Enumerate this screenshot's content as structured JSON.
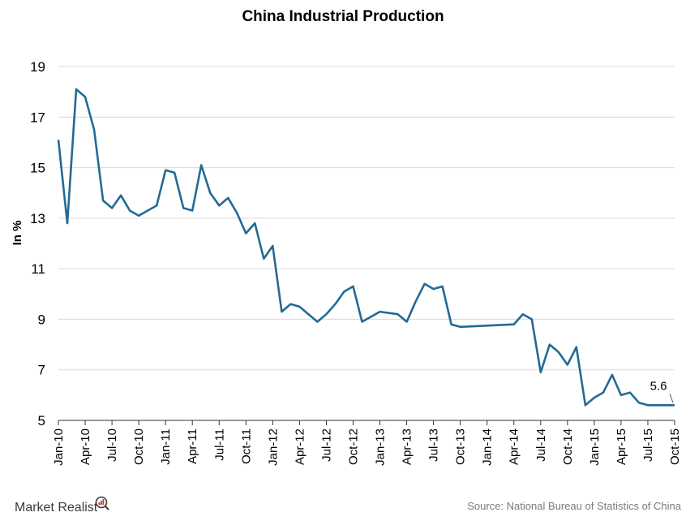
{
  "chart_data": {
    "type": "line",
    "title": "China Industrial Production",
    "ylabel": "In %",
    "xlabel": "",
    "ylim": [
      5,
      19
    ],
    "yticks": [
      5,
      7,
      9,
      11,
      13,
      15,
      17,
      19
    ],
    "grid": "horizontal",
    "line_color": "#236a96",
    "x_tick_labels": [
      "Jan-10",
      "Apr-10",
      "Jul-10",
      "Oct-10",
      "Jan-11",
      "Apr-11",
      "Jul-11",
      "Oct-11",
      "Jan-12",
      "Apr-12",
      "Jul-12",
      "Oct-12",
      "Jan-13",
      "Apr-13",
      "Jul-13",
      "Oct-13",
      "Jan-14",
      "Apr-14",
      "Jul-14",
      "Oct-14",
      "Jan-15",
      "Apr-15",
      "Jul-15",
      "Oct-15"
    ],
    "series": [
      {
        "x": [
          "Jan-10",
          "Feb-10",
          "Mar-10",
          "Apr-10",
          "May-10",
          "Jun-10",
          "Jul-10",
          "Aug-10",
          "Sep-10",
          "Oct-10",
          "Dec-10",
          "Jan-11",
          "Feb-11",
          "Mar-11",
          "Apr-11",
          "May-11",
          "Jun-11",
          "Jul-11",
          "Aug-11",
          "Sep-11",
          "Oct-11",
          "Nov-11",
          "Dec-11",
          "Jan-12",
          "Feb-12",
          "Mar-12",
          "Apr-12",
          "May-12",
          "Jun-12",
          "Jul-12",
          "Aug-12",
          "Sep-12",
          "Oct-12",
          "Nov-12",
          "Jan-13",
          "Mar-13",
          "Apr-13",
          "May-13",
          "Jun-13",
          "Jul-13",
          "Aug-13",
          "Sep-13",
          "Oct-13",
          "Apr-14",
          "May-14",
          "Jun-14",
          "Jul-14",
          "Aug-14",
          "Sep-14",
          "Oct-14",
          "Nov-14",
          "Dec-14",
          "Jan-15",
          "Feb-15",
          "Mar-15",
          "Apr-15",
          "May-15",
          "Jun-15",
          "Jul-15",
          "Aug-15",
          "Sep-15",
          "Oct-15"
        ],
        "values": [
          16.1,
          12.8,
          18.1,
          17.8,
          16.5,
          13.7,
          13.4,
          13.9,
          13.3,
          13.1,
          13.5,
          14.9,
          14.8,
          13.4,
          13.3,
          15.1,
          14.0,
          13.5,
          13.8,
          13.2,
          12.4,
          12.8,
          11.4,
          11.9,
          9.3,
          9.6,
          9.5,
          9.2,
          8.9,
          9.2,
          9.6,
          10.1,
          10.3,
          8.9,
          9.3,
          9.2,
          8.9,
          9.7,
          10.4,
          10.2,
          10.3,
          8.8,
          8.7,
          8.8,
          9.2,
          9.0,
          6.9,
          8.0,
          7.7,
          7.2,
          7.9,
          5.6,
          5.9,
          6.1,
          6.8,
          6.0,
          6.1,
          5.7,
          5.6,
          5.6,
          5.6,
          5.6
        ]
      }
    ],
    "annotation": "5.6"
  },
  "footer": {
    "source": "Source: National Bureau  of Statistics of China",
    "brand": "Market Realist"
  }
}
